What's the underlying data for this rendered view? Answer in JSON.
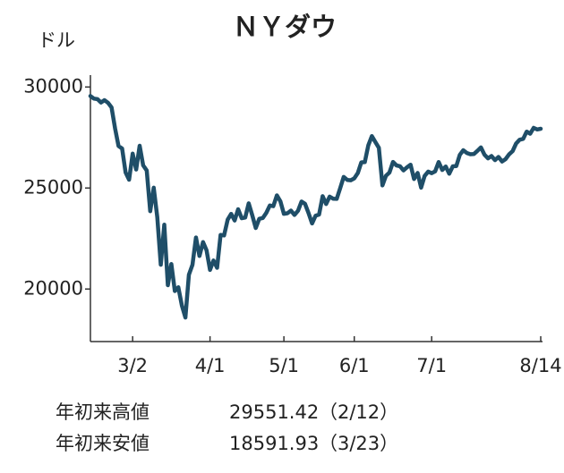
{
  "chart_data": {
    "type": "line",
    "title": "ＮＹダウ",
    "y_unit": "ドル",
    "color": "#1f4e68",
    "categories": [
      null,
      null,
      null,
      null,
      null,
      null,
      null,
      null,
      null,
      null,
      null,
      null,
      "3/2",
      null,
      null,
      null,
      null,
      null,
      null,
      null,
      null,
      null,
      null,
      null,
      null,
      null,
      null,
      null,
      null,
      null,
      null,
      null,
      null,
      null,
      "4/1",
      null,
      null,
      null,
      null,
      null,
      null,
      null,
      null,
      null,
      null,
      null,
      null,
      null,
      null,
      null,
      null,
      null,
      null,
      null,
      null,
      "5/1",
      null,
      null,
      null,
      null,
      null,
      null,
      null,
      null,
      null,
      null,
      null,
      null,
      null,
      null,
      null,
      null,
      null,
      null,
      null,
      "6/1",
      null,
      null,
      null,
      null,
      null,
      null,
      null,
      null,
      null,
      null,
      null,
      null,
      null,
      null,
      null,
      null,
      null,
      null,
      null,
      null,
      null,
      "7/1",
      null,
      null,
      null,
      null,
      null,
      null,
      null,
      null,
      null,
      null,
      null,
      null,
      null,
      null,
      null,
      null,
      null,
      null,
      null,
      null,
      null,
      null,
      null,
      null,
      null,
      null,
      null,
      null,
      null,
      null,
      "8/14"
    ],
    "values": [
      29551,
      29423,
      29398,
      29232,
      29348,
      29219,
      28992,
      27961,
      27081,
      26957,
      25767,
      25409,
      26703,
      25917,
      27091,
      26121,
      25865,
      23851,
      25018,
      23553,
      21200,
      23185,
      20189,
      21237,
      19899,
      20087,
      19174,
      18592,
      20704,
      21201,
      22552,
      21637,
      22327,
      21917,
      20944,
      21413,
      21053,
      22680,
      22654,
      23434,
      23719,
      23391,
      23950,
      23505,
      23538,
      24243,
      23650,
      23019,
      23475,
      23516,
      23775,
      24134,
      24102,
      24634,
      24346,
      23724,
      23750,
      23883,
      23665,
      23876,
      24331,
      24222,
      23765,
      23248,
      23625,
      23685,
      24597,
      24207,
      24576,
      24474,
      24465,
      24995,
      25548,
      25401,
      25383,
      25475,
      25742,
      26270,
      26282,
      27111,
      27572,
      27272,
      26990,
      25128,
      25606,
      25763,
      26290,
      26120,
      26080,
      25871,
      26025,
      26156,
      25445,
      25746,
      25016,
      25596,
      25813,
      25735,
      25827,
      26287,
      25891,
      26067,
      25707,
      26075,
      26086,
      26643,
      26870,
      26735,
      26672,
      26681,
      26840,
      27006,
      26653,
      26470,
      26585,
      26380,
      26540,
      26314,
      26428,
      26665,
      26828,
      27202,
      27387,
      27433,
      27791,
      27687,
      27977,
      27897,
      27931
    ],
    "ylim": [
      17400,
      30500
    ],
    "yticks": [
      20000,
      25000,
      30000
    ],
    "grid": false,
    "annotations": [
      {
        "label": "年初来高値",
        "value": 29551.42,
        "date": "（2/12）"
      },
      {
        "label": "年初来安値",
        "value": 18591.93,
        "date": "（3/23）"
      }
    ]
  }
}
